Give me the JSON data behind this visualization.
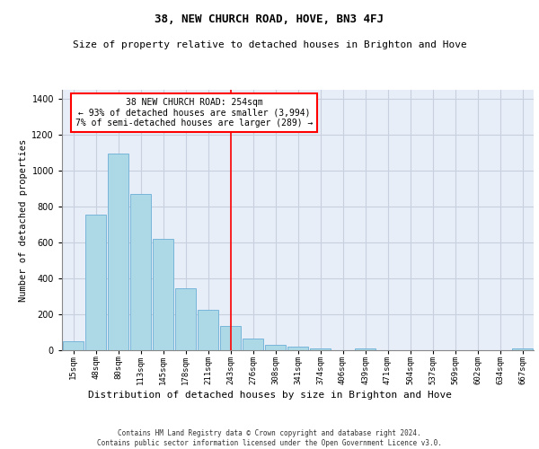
{
  "title": "38, NEW CHURCH ROAD, HOVE, BN3 4FJ",
  "subtitle": "Size of property relative to detached houses in Brighton and Hove",
  "xlabel": "Distribution of detached houses by size in Brighton and Hove",
  "ylabel": "Number of detached properties",
  "footer_line1": "Contains HM Land Registry data © Crown copyright and database right 2024.",
  "footer_line2": "Contains public sector information licensed under the Open Government Licence v3.0.",
  "annotation_line1": "38 NEW CHURCH ROAD: 254sqm",
  "annotation_line2": "← 93% of detached houses are smaller (3,994)",
  "annotation_line3": "7% of semi-detached houses are larger (289) →",
  "bar_color": "#add8e6",
  "bar_edge_color": "#6baed6",
  "reference_line_color": "red",
  "categories": [
    "15sqm",
    "48sqm",
    "80sqm",
    "113sqm",
    "145sqm",
    "178sqm",
    "211sqm",
    "243sqm",
    "276sqm",
    "308sqm",
    "341sqm",
    "374sqm",
    "406sqm",
    "439sqm",
    "471sqm",
    "504sqm",
    "537sqm",
    "569sqm",
    "602sqm",
    "634sqm",
    "667sqm"
  ],
  "bar_heights": [
    50,
    755,
    1095,
    870,
    620,
    345,
    225,
    135,
    65,
    30,
    20,
    10,
    0,
    10,
    0,
    0,
    0,
    0,
    0,
    0,
    10
  ],
  "ref_bin_index": 7,
  "ylim": [
    0,
    1450
  ],
  "background_color": "#e8eef8",
  "grid_color": "#c8d0e0",
  "title_fontsize": 9,
  "subtitle_fontsize": 8,
  "ylabel_fontsize": 7.5,
  "xlabel_fontsize": 8,
  "tick_fontsize": 6.5,
  "annotation_fontsize": 7,
  "footer_fontsize": 5.5
}
